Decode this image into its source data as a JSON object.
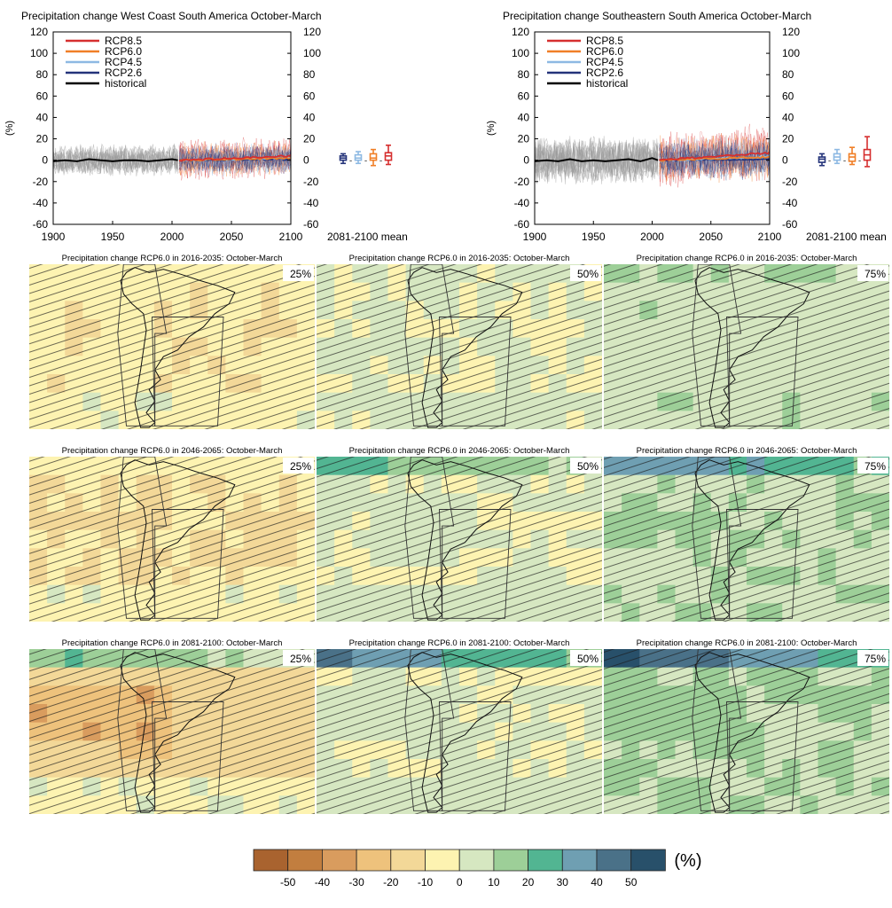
{
  "colors": {
    "rcp85": "#d62f2f",
    "rcp60": "#f07f27",
    "rcp45": "#8db9e3",
    "rcp26": "#24337a",
    "historical": "#000000",
    "historical_spread": "#9a9a9a"
  },
  "timeseries": [
    {
      "title": "Precipitation change West Coast South America October-March",
      "ylabel": "(%)",
      "mean_label": "2081-2100 mean",
      "box_sep": "-",
      "legend_position": "top-left",
      "legend": [
        "RCP8.5",
        "RCP6.0",
        "RCP4.5",
        "RCP2.6",
        "historical"
      ],
      "chart_data": {
        "type": "line",
        "xlim": [
          1900,
          2100
        ],
        "ylim": [
          -60,
          120
        ],
        "x_ticks": [
          "1900",
          "1950",
          "2000",
          "2050",
          "2100"
        ],
        "y_ticks": [
          "120",
          "100",
          "80",
          "60",
          "40",
          "20",
          "0",
          "-20",
          "-40",
          "-60"
        ],
        "historical_mean": {
          "x": [
            1900,
            1910,
            1920,
            1930,
            1940,
            1950,
            1960,
            1970,
            1980,
            1990,
            2000,
            2005
          ],
          "y": [
            -1,
            0,
            -1,
            1,
            0,
            -1,
            0,
            0,
            -1,
            0,
            1,
            0
          ]
        },
        "historical_spread": 13,
        "scenario_spread": {
          "RCP2.6": 13,
          "RCP4.5": 15,
          "RCP6.0": 16,
          "RCP8.5": 19
        },
        "scenario_mean_2100": {
          "RCP2.6": 1,
          "RCP4.5": 2,
          "RCP6.0": 2,
          "RCP8.5": 4
        },
        "boxes_2081_2100": [
          {
            "name": "RCP2.6",
            "median": 2,
            "q1": 0,
            "q3": 4,
            "min": -3,
            "max": 6
          },
          {
            "name": "RCP4.5",
            "median": 2,
            "q1": 0,
            "q3": 5,
            "min": -3,
            "max": 8
          },
          {
            "name": "RCP6.0",
            "median": 2,
            "q1": 0,
            "q3": 6,
            "min": -5,
            "max": 10
          },
          {
            "name": "RCP8.5",
            "median": 4,
            "q1": 0,
            "q3": 7,
            "min": -4,
            "max": 14
          }
        ]
      }
    },
    {
      "title": "Precipitation change Southeastern South America October-March",
      "ylabel": "(%)",
      "mean_label": "2081-2100 mean",
      "box_sep": "-",
      "legend_position": "top-left",
      "legend": [
        "RCP8.5",
        "RCP6.0",
        "RCP4.5",
        "RCP2.6",
        "historical"
      ],
      "chart_data": {
        "type": "line",
        "xlim": [
          1900,
          2100
        ],
        "ylim": [
          -60,
          120
        ],
        "x_ticks": [
          "1900",
          "1950",
          "2000",
          "2050",
          "2100"
        ],
        "y_ticks": [
          "120",
          "100",
          "80",
          "60",
          "40",
          "20",
          "0",
          "-20",
          "-40",
          "-60"
        ],
        "historical_mean": {
          "x": [
            1900,
            1910,
            1920,
            1930,
            1940,
            1950,
            1960,
            1970,
            1980,
            1990,
            2000,
            2005
          ],
          "y": [
            -1,
            0,
            -1,
            1,
            -1,
            0,
            -1,
            0,
            1,
            -1,
            2,
            0
          ]
        },
        "historical_spread": 20,
        "scenario_spread": {
          "RCP2.6": 18,
          "RCP4.5": 20,
          "RCP6.0": 22,
          "RCP8.5": 26
        },
        "scenario_mean_2100": {
          "RCP2.6": 1,
          "RCP4.5": 3,
          "RCP6.0": 3,
          "RCP8.5": 7
        },
        "boxes_2081_2100": [
          {
            "name": "RCP2.6",
            "median": 1,
            "q1": -2,
            "q3": 3,
            "min": -5,
            "max": 6
          },
          {
            "name": "RCP4.5",
            "median": 3,
            "q1": 0,
            "q3": 6,
            "min": -3,
            "max": 10
          },
          {
            "name": "RCP6.0",
            "median": 3,
            "q1": -1,
            "q3": 6,
            "min": -4,
            "max": 12
          },
          {
            "name": "RCP8.5",
            "median": 5,
            "q1": 0,
            "q3": 10,
            "min": -6,
            "max": 22
          }
        ]
      }
    }
  ],
  "maps": [
    {
      "title": "Precipitation change RCP6.0 in 2016-2035: October-March",
      "percentile": "25%",
      "chart_data": {
        "type": "heatmap",
        "period": "2016-2035",
        "percentile_value": 25,
        "mean_change": -8,
        "north_tropical_change": -6,
        "south_ocean_change": -3,
        "land_extreme_change": -10,
        "hatched": true
      }
    },
    {
      "title": "Precipitation change RCP6.0 in 2016-2035: October-March",
      "percentile": "50%",
      "chart_data": {
        "type": "heatmap",
        "period": "2016-2035",
        "percentile_value": 50,
        "mean_change": 0,
        "north_tropical_change": 2,
        "south_ocean_change": 3,
        "land_extreme_change": 4,
        "hatched": true
      }
    },
    {
      "title": "Precipitation change RCP6.0 in 2016-2035: October-March",
      "percentile": "75%",
      "chart_data": {
        "type": "heatmap",
        "period": "2016-2035",
        "percentile_value": 75,
        "mean_change": 6,
        "north_tropical_change": 14,
        "south_ocean_change": 7,
        "land_extreme_change": 9,
        "hatched": true
      }
    },
    {
      "title": "Precipitation change RCP6.0 in 2046-2065: October-March",
      "percentile": "25%",
      "chart_data": {
        "type": "heatmap",
        "period": "2046-2065",
        "percentile_value": 25,
        "mean_change": -10,
        "north_tropical_change": -8,
        "south_ocean_change": -3,
        "land_extreme_change": -14,
        "hatched": true
      }
    },
    {
      "title": "Precipitation change RCP6.0 in 2046-2065: October-March",
      "percentile": "50%",
      "chart_data": {
        "type": "heatmap",
        "period": "2046-2065",
        "percentile_value": 50,
        "mean_change": 0,
        "north_tropical_change": 22,
        "south_ocean_change": 4,
        "land_extreme_change": 6,
        "hatched": true
      }
    },
    {
      "title": "Precipitation change RCP6.0 in 2046-2065: October-March",
      "percentile": "75%",
      "chart_data": {
        "type": "heatmap",
        "period": "2046-2065",
        "percentile_value": 75,
        "mean_change": 8,
        "north_tropical_change": 42,
        "south_ocean_change": 8,
        "land_extreme_change": 14,
        "hatched": true
      }
    },
    {
      "title": "Precipitation change RCP6.0 in 2081-2100: October-March",
      "percentile": "25%",
      "chart_data": {
        "type": "heatmap",
        "period": "2081-2100",
        "percentile_value": 25,
        "mean_change": -15,
        "north_tropical_change": 20,
        "south_ocean_change": -2,
        "land_extreme_change": -40,
        "hatched": true
      }
    },
    {
      "title": "Precipitation change RCP6.0 in 2081-2100: October-March",
      "percentile": "50%",
      "chart_data": {
        "type": "heatmap",
        "period": "2081-2100",
        "percentile_value": 50,
        "mean_change": 0,
        "north_tropical_change": 42,
        "south_ocean_change": 6,
        "land_extreme_change": 8,
        "hatched": true
      }
    },
    {
      "title": "Precipitation change RCP6.0 in 2081-2100: October-March",
      "percentile": "75%",
      "chart_data": {
        "type": "heatmap",
        "period": "2081-2100",
        "percentile_value": 75,
        "mean_change": 10,
        "north_tropical_change": 55,
        "south_ocean_change": 10,
        "land_extreme_change": 18,
        "hatched": true
      }
    }
  ],
  "colorbar": {
    "unit": "(%)",
    "labels": [
      "-50",
      "-40",
      "-30",
      "-20",
      "-10",
      "0",
      "10",
      "20",
      "30",
      "40",
      "50"
    ],
    "bins": [
      -60,
      -50,
      -40,
      -30,
      -20,
      -10,
      0,
      10,
      20,
      30,
      40,
      50,
      60
    ],
    "colors": [
      "#a9632f",
      "#c27e3f",
      "#d99c5e",
      "#eec27c",
      "#f3d898",
      "#fdf3b1",
      "#d6e7c1",
      "#9dcf98",
      "#52b592",
      "#6f9fb2",
      "#4a7188",
      "#28506a"
    ]
  }
}
